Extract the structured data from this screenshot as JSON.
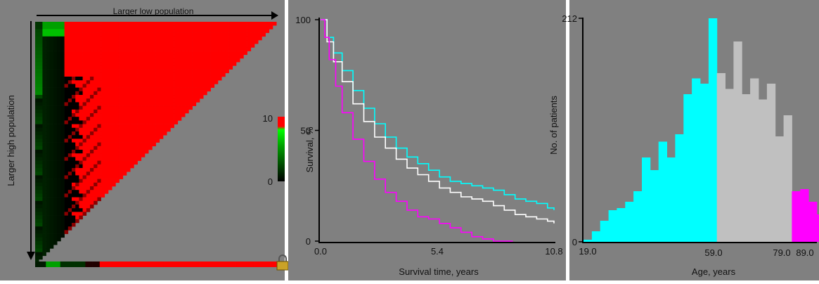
{
  "colors": {
    "panel_bg": "#808080",
    "page_bg": "#ffffff",
    "heat_high": "#ff0000",
    "heat_mid": "#000000",
    "heat_low": "#00ff00",
    "cyan": "#00ffff",
    "gray": "#c0c0c0",
    "magenta": "#ff00ff",
    "white_line": "#ffffff"
  },
  "heatmap": {
    "top_label": "Larger low population",
    "side_label": "Larger high population",
    "colorbar_label": "Survival, %",
    "colorbar_max": "10",
    "colorbar_min": "0",
    "lock_icon": "lock-icon"
  },
  "chart_data": [
    {
      "type": "line",
      "xlabel": "Survival time, years",
      "ylabel": "",
      "xlim": [
        0,
        10.8
      ],
      "ylim": [
        0,
        100
      ],
      "xticks": [
        "0.0",
        "5.4",
        "10.8"
      ],
      "yticks": [
        "0",
        "50",
        "100"
      ],
      "series": [
        {
          "color": "#00ffff",
          "x": [
            0,
            0.3,
            0.6,
            1.0,
            1.5,
            2.0,
            2.5,
            3.0,
            3.5,
            4.0,
            4.5,
            5.0,
            5.5,
            6.0,
            6.5,
            7.0,
            7.5,
            8.0,
            8.5,
            9.0,
            9.5,
            10.0,
            10.5,
            10.8
          ],
          "y": [
            100,
            92,
            85,
            77,
            68,
            60,
            53,
            47,
            42,
            38,
            35,
            32,
            29,
            27,
            26,
            25,
            24,
            23,
            21,
            19,
            18,
            17,
            15,
            14
          ]
        },
        {
          "color": "#ffffff",
          "x": [
            0,
            0.3,
            0.6,
            1.0,
            1.5,
            2.0,
            2.5,
            3.0,
            3.5,
            4.0,
            4.5,
            5.0,
            5.5,
            6.0,
            6.5,
            7.0,
            7.5,
            8.0,
            8.5,
            9.0,
            9.5,
            10.0,
            10.5,
            10.8
          ],
          "y": [
            100,
            90,
            81,
            72,
            62,
            54,
            47,
            42,
            37,
            33,
            30,
            27,
            24,
            22,
            20,
            19,
            18,
            16,
            14,
            12,
            11,
            10,
            9,
            8
          ]
        },
        {
          "color": "#ff00ff",
          "x": [
            0,
            0.2,
            0.4,
            0.7,
            1.0,
            1.5,
            2.0,
            2.5,
            3.0,
            3.5,
            4.0,
            4.5,
            5.0,
            5.5,
            6.0,
            6.5,
            7.0,
            7.5,
            8.0,
            8.5,
            8.9
          ],
          "y": [
            100,
            92,
            82,
            70,
            58,
            46,
            36,
            28,
            22,
            18,
            14,
            11,
            10,
            8,
            6,
            4,
            2,
            1,
            0,
            0,
            0
          ]
        }
      ]
    },
    {
      "type": "bar",
      "xlabel": "Age, years",
      "ylabel": "No. of patients",
      "xlim": [
        19,
        89
      ],
      "ylim": [
        0,
        212
      ],
      "xticks": [
        "19.0",
        "59.0",
        "79.0",
        "89.0"
      ],
      "yticks": [
        "0",
        "212"
      ],
      "bin_start": 19,
      "bin_width": 2.5,
      "values": [
        2,
        10,
        20,
        30,
        32,
        38,
        48,
        80,
        68,
        95,
        80,
        102,
        140,
        155,
        150,
        212,
        160,
        145,
        190,
        140,
        155,
        135,
        150,
        100,
        120,
        48,
        50,
        38,
        26
      ],
      "bin_colors": [
        "#00ffff",
        "#00ffff",
        "#00ffff",
        "#00ffff",
        "#00ffff",
        "#00ffff",
        "#00ffff",
        "#00ffff",
        "#00ffff",
        "#00ffff",
        "#00ffff",
        "#00ffff",
        "#00ffff",
        "#00ffff",
        "#00ffff",
        "#00ffff",
        "#c0c0c0",
        "#c0c0c0",
        "#c0c0c0",
        "#c0c0c0",
        "#c0c0c0",
        "#c0c0c0",
        "#c0c0c0",
        "#c0c0c0",
        "#c0c0c0",
        "#ff00ff",
        "#ff00ff",
        "#ff00ff",
        "#ff00ff"
      ]
    }
  ]
}
